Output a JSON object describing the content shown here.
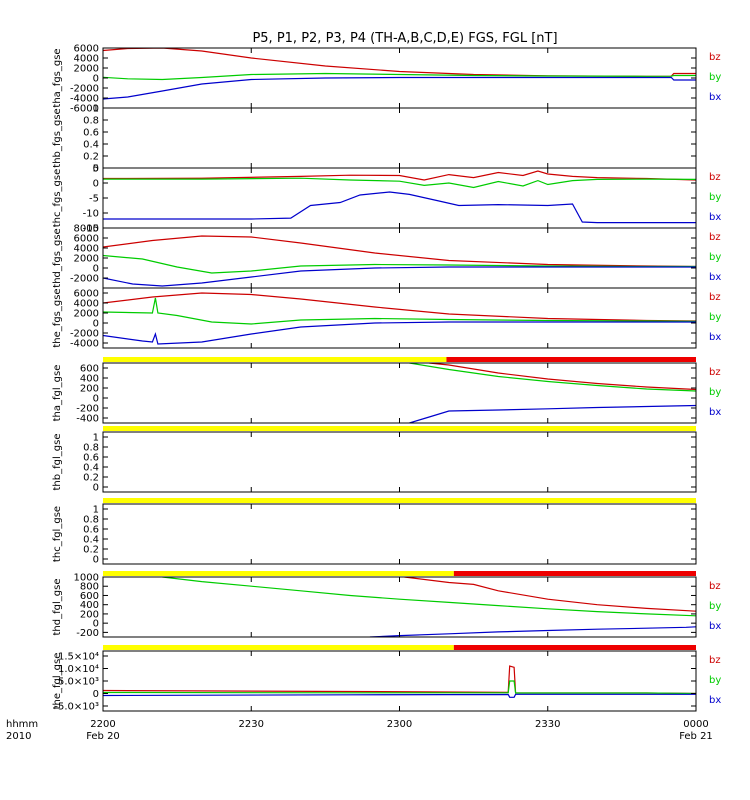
{
  "title": "P5, P1, P2, P3, P4 (TH-A,B,C,D,E) FGS, FGL [nT]",
  "colors": {
    "bx": "#0000cc",
    "by": "#00cc00",
    "bz": "#cc0000",
    "flag_yellow": "#ffff00",
    "flag_red": "#ee0000"
  },
  "x_axis": {
    "label_line1": "hhmm",
    "label_line2": "2010",
    "ticks": [
      {
        "t": 0,
        "top": "2200",
        "bottom": "Feb 20"
      },
      {
        "t": 30,
        "top": "2230",
        "bottom": ""
      },
      {
        "t": 60,
        "top": "2300",
        "bottom": ""
      },
      {
        "t": 90,
        "top": "2330",
        "bottom": ""
      },
      {
        "t": 120,
        "top": "0000",
        "bottom": "Feb 21"
      }
    ],
    "range_minutes": [
      0,
      120
    ]
  },
  "chart_data": [
    {
      "id": "tha_fgs",
      "type": "line",
      "ylabel": "tha_fgs_gse",
      "ylim": [
        -6000,
        6000
      ],
      "yticks": [
        6000,
        4000,
        2000,
        0,
        -2000,
        -4000,
        -6000
      ],
      "legend": [
        "bz",
        "by",
        "bx"
      ],
      "flag": null,
      "series": [
        {
          "name": "bz",
          "x": [
            0,
            5,
            12,
            20,
            30,
            45,
            60,
            75,
            90,
            110,
            115,
            115.5,
            120
          ],
          "values": [
            5500,
            5900,
            6000,
            5400,
            4000,
            2400,
            1300,
            700,
            450,
            350,
            360,
            900,
            900
          ]
        },
        {
          "name": "by",
          "x": [
            0,
            5,
            12,
            20,
            30,
            45,
            60,
            75,
            90,
            110,
            115,
            115.5,
            120
          ],
          "values": [
            150,
            -150,
            -300,
            100,
            700,
            900,
            700,
            500,
            400,
            350,
            360,
            500,
            500
          ]
        },
        {
          "name": "bx",
          "x": [
            0,
            5,
            12,
            20,
            30,
            45,
            60,
            75,
            90,
            110,
            115,
            115.5,
            120
          ],
          "values": [
            -4200,
            -3800,
            -2600,
            -1200,
            -300,
            0,
            100,
            100,
            100,
            100,
            100,
            -400,
            -400
          ]
        }
      ]
    },
    {
      "id": "thb_fgs",
      "type": "line",
      "ylabel": "thb_fgs_gse",
      "ylim": [
        0,
        1
      ],
      "yticks": [
        1.0,
        0.8,
        0.6,
        0.4,
        0.2,
        0.0
      ],
      "legend": [],
      "flag": null,
      "series": []
    },
    {
      "id": "thc_fgs",
      "type": "line",
      "ylabel": "thc_fgs_gse",
      "ylim": [
        -15,
        5
      ],
      "yticks": [
        5,
        0,
        -5,
        -10,
        -15
      ],
      "legend": [
        "bz",
        "by",
        "bx"
      ],
      "flag": null,
      "series": [
        {
          "name": "bz",
          "x": [
            0,
            20,
            40,
            50,
            60,
            65,
            70,
            75,
            80,
            85,
            88,
            90,
            95,
            100,
            110,
            120
          ],
          "values": [
            1.5,
            1.6,
            2.2,
            2.6,
            2.5,
            1.0,
            2.8,
            1.8,
            3.5,
            2.5,
            4.0,
            3.0,
            2.2,
            1.8,
            1.5,
            1.0
          ]
        },
        {
          "name": "by",
          "x": [
            0,
            20,
            40,
            50,
            60,
            65,
            70,
            75,
            80,
            85,
            88,
            90,
            95,
            100,
            110,
            120
          ],
          "values": [
            1.3,
            1.3,
            1.6,
            1.0,
            0.6,
            -0.8,
            0.0,
            -1.5,
            0.5,
            -1.0,
            0.8,
            -0.5,
            0.8,
            1.2,
            1.3,
            1.2
          ]
        },
        {
          "name": "bx",
          "x": [
            0,
            30,
            38,
            42,
            48,
            52,
            58,
            62,
            68,
            72,
            80,
            90,
            95,
            97,
            100,
            110,
            120
          ],
          "values": [
            -12.0,
            -12.0,
            -11.7,
            -7.5,
            -6.5,
            -4.0,
            -3.0,
            -3.8,
            -6.0,
            -7.5,
            -7.2,
            -7.5,
            -7.0,
            -13.0,
            -13.2,
            -13.2,
            -13.2
          ]
        }
      ]
    },
    {
      "id": "thd_fgs",
      "type": "line",
      "ylabel": "thd_fgs_gse",
      "ylim": [
        -4000,
        8000
      ],
      "yticks": [
        8000,
        6000,
        4000,
        2000,
        0,
        -2000
      ],
      "legend": [
        "bz",
        "by",
        "bx"
      ],
      "flag": null,
      "series": [
        {
          "name": "bz",
          "x": [
            0,
            10,
            20,
            30,
            40,
            55,
            70,
            90,
            110,
            120
          ],
          "values": [
            4200,
            5500,
            6400,
            6200,
            5000,
            3000,
            1500,
            700,
            400,
            300
          ]
        },
        {
          "name": "by",
          "x": [
            0,
            8,
            15,
            22,
            30,
            40,
            55,
            70,
            90,
            110,
            120
          ],
          "values": [
            2500,
            1800,
            200,
            -1000,
            -600,
            400,
            700,
            600,
            400,
            300,
            300
          ]
        },
        {
          "name": "bx",
          "x": [
            0,
            6,
            12,
            20,
            30,
            40,
            55,
            70,
            90,
            110,
            120
          ],
          "values": [
            -2000,
            -3200,
            -3600,
            -3000,
            -1800,
            -600,
            0,
            200,
            200,
            200,
            200
          ]
        }
      ]
    },
    {
      "id": "the_fgs",
      "type": "line",
      "ylabel": "the_fgs_gse",
      "ylim": [
        -5000,
        7000
      ],
      "yticks": [
        6000,
        4000,
        2000,
        0,
        -2000,
        -4000
      ],
      "legend": [
        "bz",
        "by",
        "bx"
      ],
      "flag": null,
      "series": [
        {
          "name": "bz",
          "x": [
            0,
            10,
            20,
            30,
            40,
            55,
            70,
            90,
            110,
            120
          ],
          "values": [
            4000,
            5200,
            6000,
            5700,
            4800,
            3200,
            1800,
            900,
            500,
            400
          ]
        },
        {
          "name": "by",
          "x": [
            0,
            10,
            10.6,
            11.1,
            15,
            22,
            30,
            40,
            55,
            70,
            90,
            110,
            120
          ],
          "values": [
            2200,
            2000,
            5000,
            2000,
            1500,
            200,
            -200,
            600,
            900,
            700,
            500,
            400,
            350
          ]
        },
        {
          "name": "bx",
          "x": [
            0,
            8,
            10,
            10.6,
            11.1,
            20,
            30,
            40,
            55,
            70,
            90,
            110,
            120
          ],
          "values": [
            -2500,
            -3600,
            -3800,
            -2200,
            -4200,
            -3800,
            -2200,
            -800,
            0,
            200,
            200,
            200,
            200
          ]
        }
      ]
    },
    {
      "id": "tha_fgl",
      "type": "line",
      "ylabel": "tha_fgl_gse",
      "ylim": [
        -500,
        700
      ],
      "yticks": [
        600,
        400,
        200,
        0,
        -200,
        -400
      ],
      "legend": [
        "bz",
        "by",
        "bx"
      ],
      "flag": [
        {
          "from": 0,
          "to": 69.5,
          "color": "flag_yellow"
        },
        {
          "from": 69.5,
          "to": 120,
          "color": "flag_red"
        }
      ],
      "series": [
        {
          "name": "bz",
          "x": [
            66,
            70,
            80,
            90,
            100,
            110,
            120
          ],
          "values": [
            700,
            660,
            500,
            380,
            290,
            220,
            170
          ]
        },
        {
          "name": "by",
          "x": [
            62,
            70,
            80,
            90,
            100,
            110,
            120
          ],
          "values": [
            700,
            570,
            430,
            330,
            250,
            180,
            140
          ]
        },
        {
          "name": "bx",
          "x": [
            62,
            66,
            70,
            80,
            90,
            100,
            110,
            120
          ],
          "values": [
            -500,
            -380,
            -260,
            -240,
            -215,
            -190,
            -170,
            -150
          ]
        }
      ]
    },
    {
      "id": "thb_fgl",
      "type": "line",
      "ylabel": "thb_fgl_gse",
      "ylim": [
        -0.1,
        1.1
      ],
      "yticks": [
        1.0,
        0.8,
        0.6,
        0.4,
        0.2,
        0.0
      ],
      "legend": [],
      "flag": [
        {
          "from": 0,
          "to": 120,
          "color": "flag_yellow"
        }
      ],
      "series": []
    },
    {
      "id": "thc_fgl",
      "type": "line",
      "ylabel": "thc_fgl_gse",
      "ylim": [
        -0.1,
        1.1
      ],
      "yticks": [
        1.0,
        0.8,
        0.6,
        0.4,
        0.2,
        0.0
      ],
      "legend": [],
      "flag": [
        {
          "from": 0,
          "to": 120,
          "color": "flag_yellow"
        }
      ],
      "series": []
    },
    {
      "id": "thd_fgl",
      "type": "line",
      "ylabel": "thd_fgl_gse",
      "ylim": [
        -300,
        1000
      ],
      "yticks": [
        1000,
        800,
        600,
        400,
        200,
        0,
        -200
      ],
      "legend": [
        "bz",
        "by",
        "bx"
      ],
      "flag": [
        {
          "from": 0,
          "to": 71,
          "color": "flag_yellow"
        },
        {
          "from": 71,
          "to": 120,
          "color": "flag_red"
        }
      ],
      "series": [
        {
          "name": "bz",
          "x": [
            61,
            70,
            75,
            80,
            90,
            100,
            110,
            120
          ],
          "values": [
            1000,
            880,
            840,
            700,
            520,
            400,
            320,
            260
          ]
        },
        {
          "name": "by",
          "x": [
            12,
            20,
            30,
            40,
            50,
            60,
            70,
            80,
            90,
            100,
            110,
            120
          ],
          "values": [
            1000,
            900,
            800,
            700,
            600,
            520,
            450,
            380,
            310,
            250,
            200,
            160
          ]
        },
        {
          "name": "bx",
          "x": [
            54,
            60,
            70,
            80,
            90,
            100,
            110,
            118,
            120
          ],
          "values": [
            -300,
            -270,
            -230,
            -190,
            -160,
            -130,
            -110,
            -90,
            -80
          ]
        }
      ]
    },
    {
      "id": "the_fgl",
      "type": "line",
      "ylabel": "the_fgl_gse",
      "ylim": [
        -7000,
        17000
      ],
      "yticks": [
        15000,
        10000,
        5000,
        0,
        -5000
      ],
      "ytick_labels": [
        "1.5×10⁴",
        "1.0×10⁴",
        "5.0×10³",
        "0",
        "-5.0×10³"
      ],
      "legend": [
        "bz",
        "by",
        "bx"
      ],
      "flag": [
        {
          "from": 0,
          "to": 71,
          "color": "flag_yellow"
        },
        {
          "from": 71,
          "to": 120,
          "color": "flag_red"
        }
      ],
      "series": [
        {
          "name": "bz",
          "x": [
            0,
            50,
            82,
            82.3,
            83.2,
            83.5,
            110,
            120
          ],
          "values": [
            1200,
            800,
            500,
            11000,
            10500,
            200,
            200,
            0
          ]
        },
        {
          "name": "by",
          "x": [
            0,
            50,
            82,
            82.3,
            83.2,
            83.5,
            110,
            120
          ],
          "values": [
            400,
            300,
            300,
            5000,
            5000,
            200,
            200,
            0
          ]
        },
        {
          "name": "bx",
          "x": [
            0,
            50,
            82,
            82.3,
            83.2,
            83.5,
            110,
            120
          ],
          "values": [
            -800,
            -500,
            -400,
            -1500,
            -1500,
            -300,
            -300,
            -300
          ]
        }
      ]
    }
  ]
}
